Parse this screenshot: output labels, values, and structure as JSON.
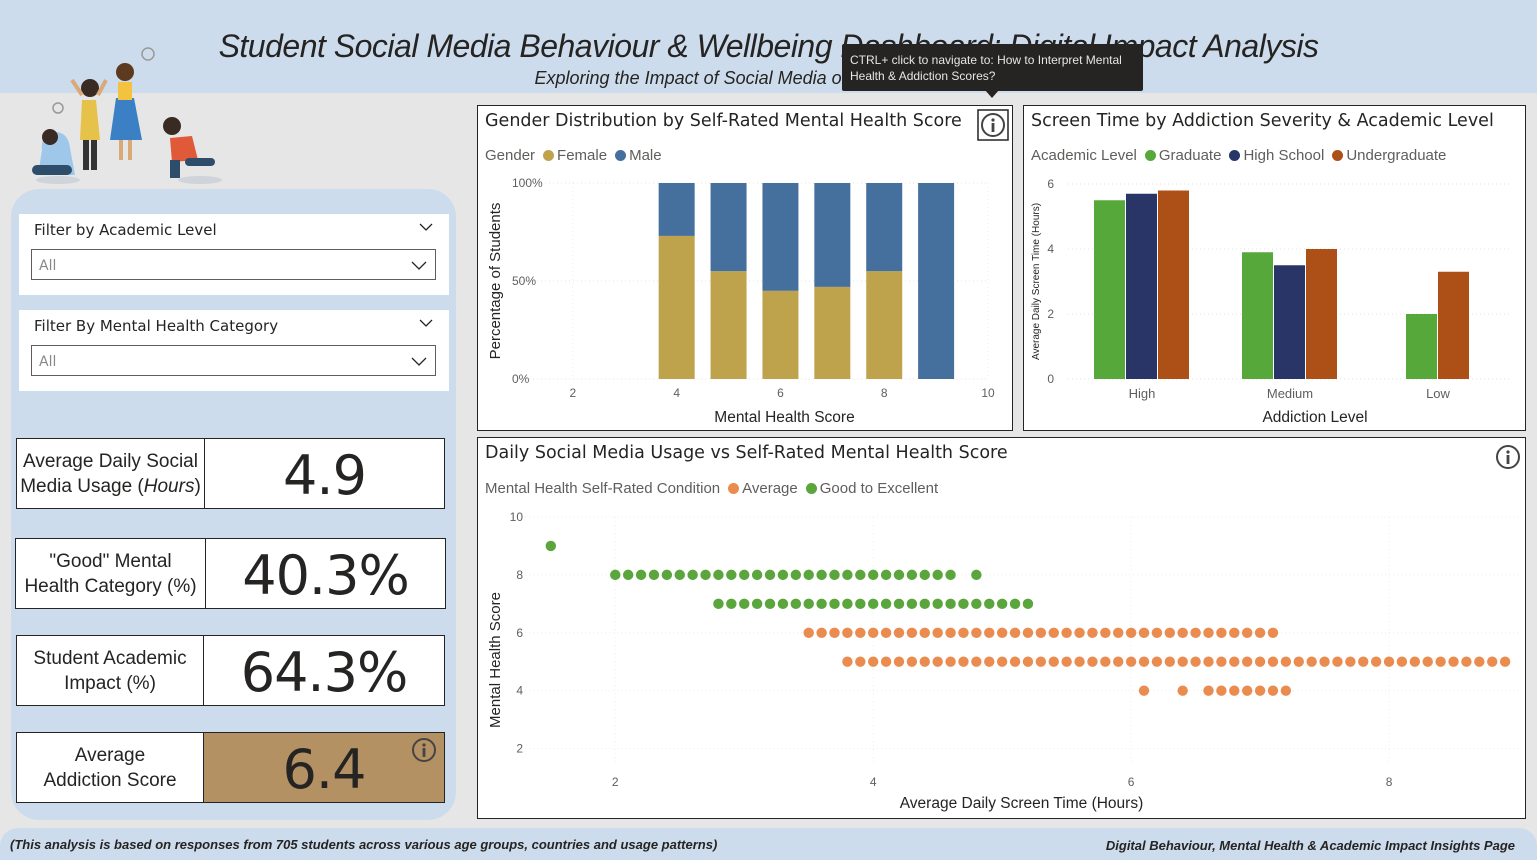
{
  "header": {
    "title": "Student Social Media Behaviour & Wellbeing Dashboard: Digital Impact Analysis",
    "subtitle": "Exploring the Impact of Social Media on Student Wellbeing"
  },
  "tooltip": {
    "text": "CTRL+ click to navigate to: How to Interpret Mental Health & Addiction Scores?"
  },
  "filters": [
    {
      "title": "Filter by Academic Level",
      "value": "All"
    },
    {
      "title": "Filter By Mental Health Category",
      "value": "All"
    }
  ],
  "kpis": {
    "avg_usage": {
      "label_line1": "Average Daily Social",
      "label_line2_plain": "Media Usage (",
      "label_line2_italic": "Hours",
      "label_line2_end": ")",
      "value": "4.9"
    },
    "good_mh": {
      "label_line1": "\"Good\" Mental",
      "label_line2": "Health Category (%)",
      "value": "40.3%"
    },
    "academic": {
      "label_line1": "Student Academic",
      "label_line2": "Impact (%)",
      "value": "64.3%"
    },
    "addiction": {
      "label_line1": "Average",
      "label_line2": "Addiction Score",
      "value": "6.4",
      "accent": "#b39163"
    }
  },
  "colors": {
    "female": "#bfa34c",
    "male": "#45709e",
    "graduate": "#56a83a",
    "high_school": "#283566",
    "undergraduate": "#ac5018",
    "average": "#ea8c4f",
    "good": "#5aa53c"
  },
  "chart_data": [
    {
      "type": "bar",
      "stacked": "100%",
      "title": "Gender Distribution by Self-Rated Mental Health Score",
      "legend_title": "Gender",
      "xlabel": "Mental Health Score",
      "ylabel": "Percentage of Students",
      "x_ticks": [
        "2",
        "4",
        "6",
        "8",
        "10"
      ],
      "y_ticks": [
        "0%",
        "50%",
        "100%"
      ],
      "xlim": [
        1,
        10
      ],
      "categories": [
        4,
        5,
        6,
        7,
        8,
        9
      ],
      "series": [
        {
          "name": "Female",
          "values": [
            73,
            55,
            45,
            47,
            55,
            0
          ]
        },
        {
          "name": "Male",
          "values": [
            27,
            45,
            55,
            53,
            45,
            100
          ]
        }
      ]
    },
    {
      "type": "bar",
      "title": "Screen Time by Addiction Severity & Academic Level",
      "legend_title": "Academic Level",
      "xlabel": "Addiction Level",
      "ylabel": "Average Daily Screen Time (Hours)",
      "categories": [
        "High",
        "Medium",
        "Low"
      ],
      "ylim": [
        0,
        6
      ],
      "y_ticks": [
        "0",
        "2",
        "4",
        "6"
      ],
      "series": [
        {
          "name": "Graduate",
          "values": [
            5.5,
            3.9,
            2.0
          ]
        },
        {
          "name": "High School",
          "values": [
            5.7,
            3.5,
            null
          ]
        },
        {
          "name": "Undergraduate",
          "values": [
            5.8,
            4.0,
            3.3
          ]
        }
      ]
    },
    {
      "type": "scatter",
      "title": "Daily Social Media Usage vs Self-Rated Mental Health Score",
      "legend_title": "Mental Health Self-Rated Condition",
      "xlabel": "Average Daily Screen Time (Hours)",
      "ylabel": "Mental Health Score",
      "x_ticks": [
        "2",
        "4",
        "6",
        "8"
      ],
      "y_ticks": [
        "2",
        "4",
        "6",
        "8",
        "10"
      ],
      "xlim": [
        1.3,
        9.0
      ],
      "ylim": [
        1.5,
        10
      ],
      "series": [
        {
          "name": "Good to Excellent",
          "groups": [
            {
              "y": 9,
              "x": [
                1.5
              ]
            },
            {
              "y": 8,
              "xrange": [
                2.0,
                4.6
              ],
              "step": 0.1
            },
            {
              "y": 8,
              "x": [
                4.8
              ]
            },
            {
              "y": 7,
              "xrange": [
                2.8,
                5.2
              ],
              "step": 0.1
            }
          ]
        },
        {
          "name": "Average",
          "groups": [
            {
              "y": 6,
              "xrange": [
                3.5,
                7.1
              ],
              "step": 0.1
            },
            {
              "y": 5,
              "xrange": [
                3.8,
                8.9
              ],
              "step": 0.1
            },
            {
              "y": 4,
              "x": [
                6.1,
                6.4
              ]
            },
            {
              "y": 4,
              "xrange": [
                6.6,
                7.2
              ],
              "step": 0.1
            }
          ]
        }
      ]
    }
  ],
  "footer": {
    "left": "(This analysis is based on responses from 705 students across various age groups, countries and usage patterns)",
    "right": "Digital Behaviour, Mental Health & Academic Impact Insights Page"
  }
}
